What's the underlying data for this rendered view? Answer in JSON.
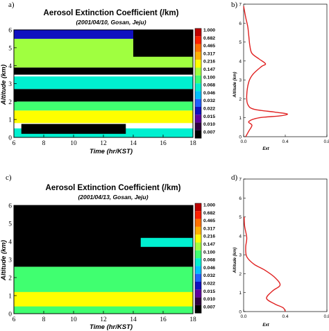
{
  "chart_data": [
    {
      "panel": "a)",
      "type": "heatmap",
      "title": "Aerosol Extinction Coefficient (/km)",
      "subtitle": "(2001/04/10, Gosan, Jeju)",
      "xlabel": "Time (hr/KST)",
      "ylabel": "Altitude (km)",
      "xlim": [
        6,
        18
      ],
      "ylim": [
        0,
        6
      ],
      "xticks": [
        6,
        8,
        10,
        12,
        14,
        16,
        18
      ],
      "yticks": [
        0,
        1,
        2,
        3,
        4,
        5,
        6
      ],
      "colorbar": {
        "levels": [
          "1.000",
          "0.682",
          "0.465",
          "0.317",
          "0.216",
          "0.147",
          "0.100",
          "0.068",
          "0.046",
          "0.032",
          "0.022",
          "0.015",
          "0.010",
          "0.007"
        ],
        "colors": [
          "#c00000",
          "#ff2000",
          "#ff7000",
          "#ffb000",
          "#ffff00",
          "#a0ff40",
          "#40ff70",
          "#00f0d0",
          "#00c0ff",
          "#2060ff",
          "#1010c0",
          "#6000a0",
          "#300040",
          "#000000"
        ]
      },
      "layers": [
        {
          "t": [
            6,
            18
          ],
          "z": [
            0.0,
            0.5
          ],
          "value": 0.068
        },
        {
          "t": [
            6.5,
            13.5
          ],
          "z": [
            0.2,
            0.75
          ],
          "value": 0.007
        },
        {
          "t": [
            6,
            18
          ],
          "z": [
            0.8,
            1.5
          ],
          "value": 0.216
        },
        {
          "t": [
            6,
            18
          ],
          "z": [
            1.5,
            2.0
          ],
          "value": 0.1
        },
        {
          "t": [
            6,
            18
          ],
          "z": [
            2.0,
            2.7
          ],
          "value": 0.007
        },
        {
          "t": [
            6,
            18
          ],
          "z": [
            2.7,
            3.4
          ],
          "value": 0.068
        },
        {
          "t": [
            6,
            18
          ],
          "z": [
            3.5,
            3.9
          ],
          "value": 0.007
        },
        {
          "t": [
            6,
            18
          ],
          "z": [
            3.9,
            5.5
          ],
          "value": 0.147
        },
        {
          "t": [
            6,
            18
          ],
          "z": [
            5.5,
            6.0
          ],
          "value": 0.022
        },
        {
          "t": [
            14,
            18
          ],
          "z": [
            4.5,
            6.0
          ],
          "value": 0.007
        }
      ]
    },
    {
      "panel": "b)",
      "type": "line",
      "xlabel": "Ext",
      "ylabel": "Altitude (km)",
      "xlim": [
        0,
        0.8
      ],
      "ylim": [
        0,
        7
      ],
      "xticks": [
        "0.0",
        "0.4",
        "0.8"
      ],
      "yticks": [
        0,
        1,
        2,
        3,
        4,
        5,
        6,
        7
      ],
      "series": [
        {
          "color": "#e02020",
          "x": [
            0.02,
            0.05,
            0.08,
            0.05,
            0.15,
            0.35,
            0.42,
            0.3,
            0.1,
            0.04,
            0.03,
            0.05,
            0.09,
            0.17,
            0.21,
            0.15,
            0.08,
            0.06,
            0.05,
            0.04,
            0.02,
            0.0
          ],
          "y": [
            0.0,
            0.3,
            0.6,
            0.8,
            1.0,
            1.1,
            1.2,
            1.3,
            1.45,
            1.7,
            2.2,
            2.9,
            3.3,
            3.7,
            3.85,
            4.1,
            4.4,
            4.8,
            5.3,
            5.8,
            6.3,
            6.9
          ]
        }
      ]
    },
    {
      "panel": "c)",
      "type": "heatmap",
      "title": "Aerosol Extinction Coefficient (/km)",
      "subtitle": "(2001/04/13, Gosan, Jeju)",
      "xlabel": "Time (hr/KST)",
      "ylabel": "Altitude (km)",
      "xlim": [
        6,
        18
      ],
      "ylim": [
        0,
        6
      ],
      "xticks": [
        6,
        8,
        10,
        12,
        14,
        16,
        18
      ],
      "yticks": [
        0,
        1,
        2,
        3,
        4,
        5,
        6
      ],
      "colorbar": {
        "levels": [
          "1.000",
          "0.682",
          "0.465",
          "0.317",
          "0.216",
          "0.147",
          "0.100",
          "0.068",
          "0.046",
          "0.032",
          "0.022",
          "0.015",
          "0.010",
          "0.007"
        ],
        "colors": [
          "#c00000",
          "#ff2000",
          "#ff7000",
          "#ffb000",
          "#ffff00",
          "#a0ff40",
          "#40ff70",
          "#00f0d0",
          "#00c0ff",
          "#2060ff",
          "#1010c0",
          "#6000a0",
          "#300040",
          "#000000"
        ]
      },
      "layers": [
        {
          "t": [
            6,
            18
          ],
          "z": [
            0.0,
            2.6
          ],
          "value": 0.1
        },
        {
          "t": [
            6,
            18
          ],
          "z": [
            0.4,
            1.2
          ],
          "value": 0.216
        },
        {
          "t": [
            6,
            18
          ],
          "z": [
            2.6,
            6.0
          ],
          "value": 0.007
        },
        {
          "t": [
            14.5,
            18
          ],
          "z": [
            3.7,
            4.2
          ],
          "value": 0.068
        }
      ]
    },
    {
      "panel": "d)",
      "type": "line",
      "xlabel": "Ext",
      "ylabel": "Altitude (km)",
      "xlim": [
        0,
        0.8
      ],
      "ylim": [
        0,
        7
      ],
      "xticks": [
        "0.0",
        "0.4",
        "0.8"
      ],
      "yticks": [
        0,
        1,
        2,
        3,
        4,
        5,
        6,
        7
      ],
      "series": [
        {
          "color": "#e02020",
          "x": [
            0.4,
            0.38,
            0.3,
            0.22,
            0.28,
            0.35,
            0.3,
            0.2,
            0.1,
            0.03,
            0.02,
            0.03,
            0.01,
            0.005
          ],
          "y": [
            0.0,
            0.2,
            0.4,
            0.7,
            1.1,
            1.4,
            1.8,
            2.2,
            2.5,
            2.9,
            3.4,
            3.9,
            4.5,
            5.0
          ]
        }
      ]
    }
  ]
}
